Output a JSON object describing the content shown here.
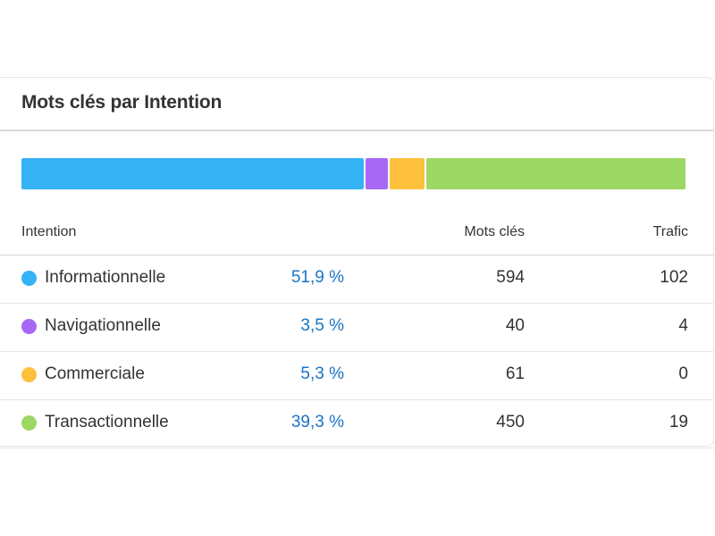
{
  "widget": {
    "title": "Mots clés par Intention"
  },
  "table": {
    "headers": {
      "intention": "Intention",
      "keywords": "Mots clés",
      "traffic": "Trafic"
    },
    "rows": [
      {
        "name": "Informationnelle",
        "percent": "51,9 %",
        "keywords": "594",
        "traffic": "102",
        "color": "#35b3f5",
        "share": 51.9
      },
      {
        "name": "Navigationnelle",
        "percent": "3,5 %",
        "keywords": "40",
        "traffic": "4",
        "color": "#a769f5",
        "share": 3.5
      },
      {
        "name": "Commerciale",
        "percent": "5,3 %",
        "keywords": "61",
        "traffic": "0",
        "color": "#fdc13e",
        "share": 5.3
      },
      {
        "name": "Transactionnelle",
        "percent": "39,3 %",
        "keywords": "450",
        "traffic": "19",
        "color": "#9cd863",
        "share": 39.3
      }
    ]
  }
}
